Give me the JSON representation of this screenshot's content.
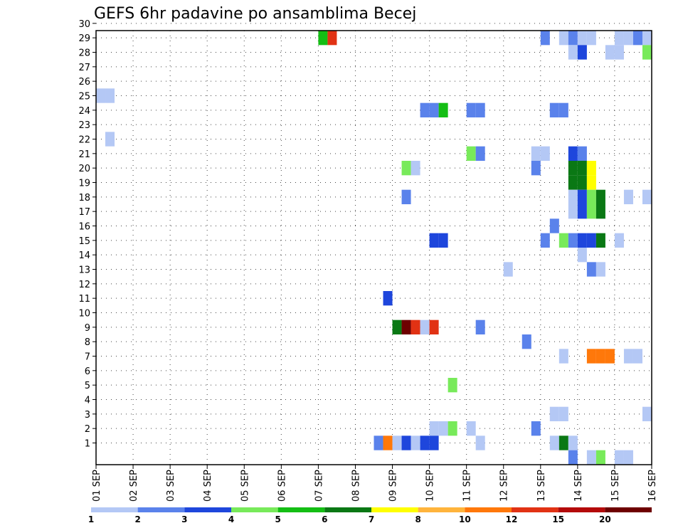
{
  "chart_data": {
    "type": "heatmap",
    "title": "GEFS 6hr padavine po ansamblima Becej",
    "x_tick_labels": [
      "01 SEP",
      "02 SEP",
      "03 SEP",
      "04 SEP",
      "05 SEP",
      "06 SEP",
      "07 SEP",
      "08 SEP",
      "09 SEP",
      "10 SEP",
      "11 SEP",
      "12 SEP",
      "13 SEP",
      "14 SEP",
      "15 SEP",
      "16 SEP"
    ],
    "y_tick_labels": [
      "1",
      "2",
      "3",
      "4",
      "5",
      "6",
      "7",
      "8",
      "9",
      "10",
      "11",
      "12",
      "13",
      "14",
      "15",
      "16",
      "17",
      "18",
      "19",
      "20",
      "21",
      "22",
      "23",
      "24",
      "25",
      "26",
      "27",
      "28",
      "29",
      "30"
    ],
    "x_time_step_hours": 6,
    "ylim": [
      0,
      30
    ],
    "grid": "dotted",
    "colorbar": {
      "labels": [
        "1",
        "2",
        "3",
        "4",
        "5",
        "6",
        "7",
        "8",
        "10",
        "12",
        "15",
        "20"
      ],
      "colors": [
        "#b4c8f5",
        "#5a82eb",
        "#1e46dc",
        "#78ea5a",
        "#14be14",
        "#0a7814",
        "#ffff00",
        "#ffb43c",
        "#ff780a",
        "#e13214",
        "#b40a0a",
        "#6e0000"
      ]
    },
    "cells": [
      {
        "col": 0,
        "row": 25,
        "cls": 1
      },
      {
        "col": 1,
        "row": 25,
        "cls": 1
      },
      {
        "col": 1,
        "row": 22,
        "cls": 1
      },
      {
        "col": 24,
        "row": 29,
        "cls": 5
      },
      {
        "col": 25,
        "row": 29,
        "cls": 10
      },
      {
        "col": 35,
        "row": 24,
        "cls": 2
      },
      {
        "col": 36,
        "row": 24,
        "cls": 2
      },
      {
        "col": 37,
        "row": 24,
        "cls": 5
      },
      {
        "col": 36,
        "row": 15,
        "cls": 3
      },
      {
        "col": 37,
        "row": 15,
        "cls": 3
      },
      {
        "col": 36,
        "row": 2,
        "cls": 1
      },
      {
        "col": 37,
        "row": 2,
        "cls": 1
      },
      {
        "col": 38,
        "row": 2,
        "cls": 4
      },
      {
        "col": 40,
        "row": 2,
        "cls": 1
      },
      {
        "col": 38,
        "row": 5,
        "cls": 4
      },
      {
        "col": 33,
        "row": 20,
        "cls": 4
      },
      {
        "col": 34,
        "row": 20,
        "cls": 1
      },
      {
        "col": 33,
        "row": 18,
        "cls": 2
      },
      {
        "col": 31,
        "row": 11,
        "cls": 3
      },
      {
        "col": 32,
        "row": 9,
        "cls": 6
      },
      {
        "col": 33,
        "row": 9,
        "cls": 12
      },
      {
        "col": 34,
        "row": 9,
        "cls": 10
      },
      {
        "col": 35,
        "row": 9,
        "cls": 1
      },
      {
        "col": 36,
        "row": 9,
        "cls": 10
      },
      {
        "col": 30,
        "row": 1,
        "cls": 2
      },
      {
        "col": 31,
        "row": 1,
        "cls": 9
      },
      {
        "col": 32,
        "row": 1,
        "cls": 1
      },
      {
        "col": 33,
        "row": 1,
        "cls": 3
      },
      {
        "col": 34,
        "row": 1,
        "cls": 1
      },
      {
        "col": 35,
        "row": 1,
        "cls": 3
      },
      {
        "col": 36,
        "row": 1,
        "cls": 3
      },
      {
        "col": 40,
        "row": 24,
        "cls": 2
      },
      {
        "col": 41,
        "row": 24,
        "cls": 2
      },
      {
        "col": 40,
        "row": 21,
        "cls": 4
      },
      {
        "col": 41,
        "row": 21,
        "cls": 2
      },
      {
        "col": 41,
        "row": 9,
        "cls": 2
      },
      {
        "col": 41,
        "row": 1,
        "cls": 1
      },
      {
        "col": 44,
        "row": 13,
        "cls": 1
      },
      {
        "col": 46,
        "row": 8,
        "cls": 2
      },
      {
        "col": 48,
        "row": 29,
        "cls": 2
      },
      {
        "col": 47,
        "row": 21,
        "cls": 1
      },
      {
        "col": 48,
        "row": 21,
        "cls": 1
      },
      {
        "col": 47,
        "row": 20,
        "cls": 2
      },
      {
        "col": 48,
        "row": 15,
        "cls": 2
      },
      {
        "col": 47,
        "row": 2,
        "cls": 2
      },
      {
        "col": 49,
        "row": 24,
        "cls": 2
      },
      {
        "col": 50,
        "row": 24,
        "cls": 2
      },
      {
        "col": 49,
        "row": 16,
        "cls": 2
      },
      {
        "col": 49,
        "row": 3,
        "cls": 1
      },
      {
        "col": 50,
        "row": 3,
        "cls": 1
      },
      {
        "col": 49,
        "row": 1,
        "cls": 1
      },
      {
        "col": 50,
        "row": 1,
        "cls": 6
      },
      {
        "col": 50,
        "row": 15,
        "cls": 4
      },
      {
        "col": 50,
        "row": 7,
        "cls": 1
      },
      {
        "col": 50,
        "row": 29,
        "cls": 1
      },
      {
        "col": 51,
        "row": 29,
        "cls": 2
      },
      {
        "col": 52,
        "row": 29,
        "cls": 1
      },
      {
        "col": 53,
        "row": 29,
        "cls": 1
      },
      {
        "col": 51,
        "row": 28,
        "cls": 1
      },
      {
        "col": 52,
        "row": 28,
        "cls": 3
      },
      {
        "col": 55,
        "row": 28,
        "cls": 1
      },
      {
        "col": 51,
        "row": 21,
        "cls": 3
      },
      {
        "col": 52,
        "row": 21,
        "cls": 2
      },
      {
        "col": 51,
        "row": 20,
        "cls": 6
      },
      {
        "col": 52,
        "row": 20,
        "cls": 6
      },
      {
        "col": 51,
        "row": 19,
        "cls": 6
      },
      {
        "col": 52,
        "row": 19,
        "cls": 6
      },
      {
        "col": 53,
        "row": 20,
        "cls": 7
      },
      {
        "col": 53,
        "row": 19,
        "cls": 7
      },
      {
        "col": 51,
        "row": 18,
        "cls": 1
      },
      {
        "col": 52,
        "row": 18,
        "cls": 3
      },
      {
        "col": 53,
        "row": 18,
        "cls": 4
      },
      {
        "col": 54,
        "row": 18,
        "cls": 6
      },
      {
        "col": 51,
        "row": 17,
        "cls": 1
      },
      {
        "col": 52,
        "row": 17,
        "cls": 3
      },
      {
        "col": 53,
        "row": 17,
        "cls": 4
      },
      {
        "col": 54,
        "row": 17,
        "cls": 6
      },
      {
        "col": 51,
        "row": 15,
        "cls": 2
      },
      {
        "col": 52,
        "row": 15,
        "cls": 3
      },
      {
        "col": 53,
        "row": 15,
        "cls": 3
      },
      {
        "col": 54,
        "row": 15,
        "cls": 6
      },
      {
        "col": 51,
        "row": 1,
        "cls": 1
      },
      {
        "col": 51,
        "row": 0,
        "cls": 2
      },
      {
        "col": 52,
        "row": 14,
        "cls": 1
      },
      {
        "col": 53,
        "row": 13,
        "cls": 2
      },
      {
        "col": 54,
        "row": 13,
        "cls": 1
      },
      {
        "col": 53,
        "row": 7,
        "cls": 9
      },
      {
        "col": 54,
        "row": 7,
        "cls": 9
      },
      {
        "col": 55,
        "row": 7,
        "cls": 9
      },
      {
        "col": 53,
        "row": 0,
        "cls": 1
      },
      {
        "col": 54,
        "row": 0,
        "cls": 4
      },
      {
        "col": 56,
        "row": 29,
        "cls": 1
      },
      {
        "col": 57,
        "row": 29,
        "cls": 1
      },
      {
        "col": 58,
        "row": 29,
        "cls": 2
      },
      {
        "col": 59,
        "row": 29,
        "cls": 1
      },
      {
        "col": 60,
        "row": 29,
        "cls": 8
      },
      {
        "col": 56,
        "row": 28,
        "cls": 1
      },
      {
        "col": 59,
        "row": 28,
        "cls": 4
      },
      {
        "col": 60,
        "row": 28,
        "cls": 1
      },
      {
        "col": 61,
        "row": 28,
        "cls": 4
      },
      {
        "col": 56,
        "row": 15,
        "cls": 1
      },
      {
        "col": 57,
        "row": 18,
        "cls": 1
      },
      {
        "col": 59,
        "row": 18,
        "cls": 1
      },
      {
        "col": 60,
        "row": 18,
        "cls": 2
      },
      {
        "col": 57,
        "row": 7,
        "cls": 1
      },
      {
        "col": 58,
        "row": 7,
        "cls": 1
      },
      {
        "col": 56,
        "row": 0,
        "cls": 1
      },
      {
        "col": 57,
        "row": 0,
        "cls": 1
      },
      {
        "col": 59,
        "row": 3,
        "cls": 1
      },
      {
        "col": 60,
        "row": 3,
        "cls": 3
      },
      {
        "col": 62,
        "row": 3,
        "cls": 2
      },
      {
        "col": 60,
        "row": 27,
        "cls": 2
      },
      {
        "col": 60,
        "row": 14,
        "cls": 4
      },
      {
        "col": 61,
        "row": 14,
        "cls": 8
      },
      {
        "col": 60,
        "row": 9,
        "cls": 5
      },
      {
        "col": 62,
        "row": 9,
        "cls": 4
      },
      {
        "col": 63,
        "row": 9,
        "cls": 12
      },
      {
        "col": 60,
        "row": 0,
        "cls": 4
      },
      {
        "col": 61,
        "row": 0,
        "cls": 1
      },
      {
        "col": 61,
        "row": 11,
        "cls": 1
      },
      {
        "col": 62,
        "row": 11,
        "cls": 1
      },
      {
        "col": 63,
        "row": 23,
        "cls": 1
      },
      {
        "col": 63,
        "row": 21,
        "cls": 1
      },
      {
        "col": 63,
        "row": 18,
        "cls": 1
      },
      {
        "col": 63,
        "row": 13,
        "cls": 2
      }
    ]
  }
}
